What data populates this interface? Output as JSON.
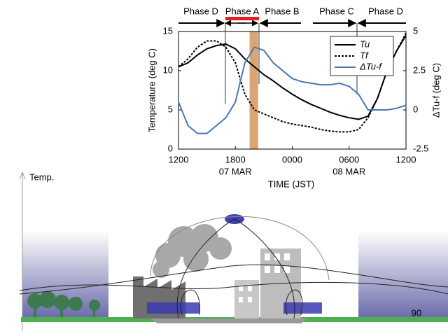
{
  "chart_data": {
    "type": "line",
    "x": [
      0,
      1,
      2,
      3,
      4,
      5,
      6,
      7,
      8,
      9,
      10,
      11,
      12,
      13,
      14,
      15,
      16,
      17,
      18,
      19,
      20,
      21,
      22,
      23,
      24
    ],
    "xlim": [
      0,
      24
    ],
    "xticks": [
      {
        "value": 0,
        "label": "1200"
      },
      {
        "value": 6,
        "label": "1800"
      },
      {
        "value": 12,
        "label": "0000"
      },
      {
        "value": 18,
        "label": "0600"
      },
      {
        "value": 24,
        "label": "1200"
      }
    ],
    "date_labels": [
      {
        "value": 6,
        "label": "07 MAR"
      },
      {
        "value": 18,
        "label": "08 MAR"
      }
    ],
    "xlabel": "TIME (JST)",
    "ylabel": "Temperature (deg C)",
    "y2label": "ΔTu-f (deg C)",
    "ylim": [
      0,
      15
    ],
    "yticks": [
      0,
      5,
      10,
      15
    ],
    "y2lim": [
      -2.5,
      5
    ],
    "y2ticks": [
      -2.5,
      0,
      2.5,
      5
    ],
    "y2color": "#3f6aa6",
    "highlight_span": [
      7.5,
      8.4
    ],
    "highlight_color": "#d9a574",
    "phases": [
      "Phase D",
      "Phase A",
      "Phase B",
      "Phase C",
      "Phase D"
    ],
    "series": [
      {
        "name": "Tu",
        "color": "#000000",
        "style": "solid",
        "values": [
          10.5,
          11,
          12,
          12.8,
          13.2,
          13.4,
          12.8,
          11.5,
          10.5,
          9.5,
          8.7,
          7.8,
          7,
          6.3,
          5.7,
          5.2,
          4.7,
          4.3,
          4,
          3.8,
          4.2,
          6.5,
          10,
          12.5,
          14.5
        ]
      },
      {
        "name": "Tf",
        "color": "#000000",
        "style": "dashed",
        "values": [
          10.5,
          11.5,
          13,
          13.8,
          13.8,
          13,
          11,
          7,
          5,
          4.5,
          4,
          3.5,
          3.2,
          3,
          2.8,
          2.5,
          2.3,
          2.2,
          2.2,
          2.5,
          4,
          6.5,
          10,
          12.5,
          14.8
        ]
      },
      {
        "name": "ΔTu-f",
        "color": "#4a78b0",
        "style": "solid",
        "axis": "y2",
        "values": [
          0.5,
          -1,
          -1.5,
          -1.5,
          -1,
          -0.5,
          0.5,
          3,
          4,
          3.8,
          3,
          2.5,
          2,
          1.8,
          1.7,
          1.6,
          1.6,
          1.7,
          1.5,
          1,
          0,
          0,
          0,
          0.1,
          0.3
        ]
      }
    ]
  },
  "illustration": {
    "axis_label": "Temp.",
    "page_number": "90"
  }
}
